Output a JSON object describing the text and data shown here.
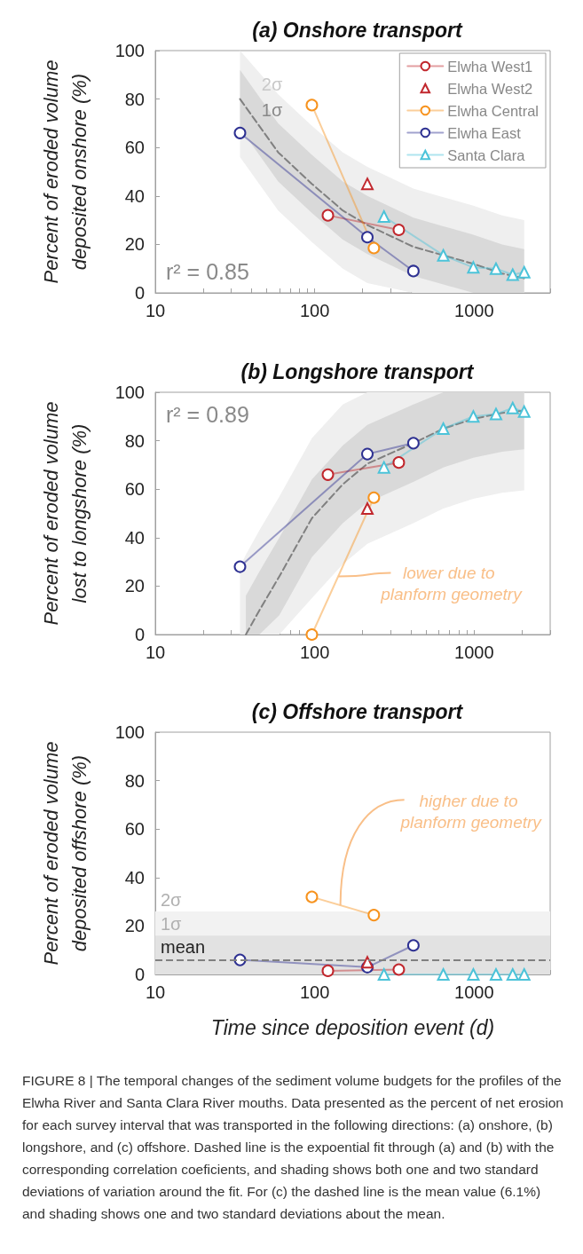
{
  "chart_data": [
    {
      "type": "line",
      "title": "(a) Onshore transport",
      "ylabel": "Percent of eroded volume deposited onshore (%)",
      "log": "x",
      "legend": "top right",
      "xlim": [
        10,
        3000
      ],
      "xticks": [
        10,
        {
          "value": 20,
          "label": null
        },
        {
          "value": 30,
          "label": null
        },
        {
          "value": 40,
          "label": null
        },
        {
          "value": 50,
          "label": null
        },
        {
          "value": 60,
          "label": null
        },
        {
          "value": 70,
          "label": null
        },
        {
          "value": 80,
          "label": null
        },
        {
          "value": 90,
          "label": null
        },
        100,
        {
          "value": 200,
          "label": null
        },
        {
          "value": 300,
          "label": null
        },
        {
          "value": 400,
          "label": null
        },
        {
          "value": 500,
          "label": null
        },
        {
          "value": 600,
          "label": null
        },
        {
          "value": 700,
          "label": null
        },
        {
          "value": 800,
          "label": null
        },
        {
          "value": 900,
          "label": null
        },
        1000,
        {
          "value": 2000,
          "label": null
        },
        {
          "value": 3000,
          "label": null
        }
      ],
      "ylim": [
        0,
        100
      ],
      "yticks": [
        0,
        20,
        40,
        60,
        80,
        100
      ],
      "series": [
        {
          "name": "Elwha West1",
          "marker": "circle",
          "color": "#c1272d",
          "x": [
            121,
            337
          ],
          "values": [
            32,
            26
          ]
        },
        {
          "name": "Elwha West2",
          "type": "scatter",
          "marker": "triangle",
          "color": "#c1272d",
          "x": [
            214
          ],
          "values": [
            45
          ]
        },
        {
          "name": "Elwha Central",
          "marker": "circle",
          "color": "#f7931e",
          "x": [
            96,
            235
          ],
          "values": [
            77.5,
            18.5
          ]
        },
        {
          "name": "Elwha East",
          "marker": "circle",
          "color": "#2e3192",
          "x": [
            34,
            214,
            416
          ],
          "values": [
            66,
            23,
            9
          ]
        },
        {
          "name": "Santa Clara",
          "marker": "triangle",
          "color": "#4cc3d9",
          "x": [
            272,
            641,
            989,
            1372,
            1746,
            2061
          ],
          "values": [
            31.5,
            15.5,
            10.5,
            10,
            7.5,
            8.5
          ]
        },
        {
          "marker": "none",
          "color": "#c8c8c8",
          "x": [
            34,
            59,
            96,
            150,
            214,
            416,
            641,
            989,
            1500,
            2061
          ],
          "values": [
            null,
            null,
            null,
            null,
            null,
            null,
            null,
            null,
            null,
            null
          ],
          "lower": [
            56,
            34,
            21,
            10,
            4,
            0,
            0,
            0,
            0,
            0
          ],
          "upper": [
            100,
            82,
            69,
            58,
            52,
            43,
            39.5,
            36,
            32,
            30
          ]
        },
        {
          "marker": "none",
          "line_style": "dashed",
          "color": "#808080",
          "x": [
            34,
            59,
            96,
            150,
            214,
            416,
            641,
            989,
            1500,
            2061
          ],
          "values": [
            80,
            58,
            45,
            34,
            28,
            19,
            15.5,
            12,
            8,
            6
          ],
          "lower": [
            68,
            46,
            33,
            22,
            16,
            7,
            3.5,
            0,
            0,
            0
          ],
          "upper": [
            92,
            70,
            57,
            46,
            40,
            31,
            27.5,
            24,
            20,
            18
          ]
        }
      ],
      "annotations": [
        {
          "text": "2σ",
          "x": 54,
          "y": 86
        },
        {
          "text": "1σ",
          "x": 54,
          "y": 75.5
        },
        "r² = 0.85"
      ]
    },
    {
      "type": "line",
      "title": "(b) Longshore transport",
      "ylabel": "Percent of eroded volume lost to longshore (%)",
      "log": "x",
      "xlim": [
        10,
        3000
      ],
      "xticks": [
        10,
        {
          "value": 20,
          "label": null
        },
        {
          "value": 30,
          "label": null
        },
        {
          "value": 40,
          "label": null
        },
        {
          "value": 50,
          "label": null
        },
        {
          "value": 60,
          "label": null
        },
        {
          "value": 70,
          "label": null
        },
        {
          "value": 80,
          "label": null
        },
        {
          "value": 90,
          "label": null
        },
        100,
        {
          "value": 200,
          "label": null
        },
        {
          "value": 300,
          "label": null
        },
        {
          "value": 400,
          "label": null
        },
        {
          "value": 500,
          "label": null
        },
        {
          "value": 600,
          "label": null
        },
        {
          "value": 700,
          "label": null
        },
        {
          "value": 800,
          "label": null
        },
        {
          "value": 900,
          "label": null
        },
        1000,
        {
          "value": 2000,
          "label": null
        },
        {
          "value": 3000,
          "label": null
        }
      ],
      "ylim": [
        0,
        100
      ],
      "yticks": [
        0,
        20,
        40,
        60,
        80,
        100
      ],
      "series": [
        {
          "marker": "circle",
          "color": "#c1272d",
          "x": [
            121,
            337
          ],
          "values": [
            66,
            71
          ]
        },
        {
          "type": "scatter",
          "marker": "triangle",
          "color": "#c1272d",
          "x": [
            214
          ],
          "values": [
            52
          ]
        },
        {
          "marker": "circle",
          "color": "#f7931e",
          "x": [
            96,
            235
          ],
          "values": [
            0,
            56.5
          ]
        },
        {
          "marker": "circle",
          "color": "#2e3192",
          "x": [
            34,
            214,
            416
          ],
          "values": [
            28,
            74.5,
            79
          ]
        },
        {
          "marker": "triangle",
          "color": "#4cc3d9",
          "x": [
            272,
            641,
            989,
            1372,
            1746,
            2061
          ],
          "values": [
            69,
            85,
            90,
            91,
            93.5,
            92
          ]
        },
        {
          "marker": "none",
          "color": "#c8c8c8",
          "x": [
            34,
            37,
            45,
            60,
            96,
            150,
            214,
            416,
            641,
            989,
            1500,
            2061
          ],
          "values": [
            null,
            null,
            null,
            null,
            null,
            null,
            null,
            null,
            null,
            null,
            null,
            null
          ],
          "lower": [
            0,
            0,
            0,
            0,
            15,
            29,
            37.5,
            46,
            52,
            56,
            58.5,
            59.5
          ],
          "upper": [
            28,
            33,
            43,
            57,
            81,
            95,
            100,
            100,
            100,
            100,
            100,
            100
          ]
        },
        {
          "marker": "none",
          "line_style": "dashed",
          "color": "#808080",
          "x": [
            37,
            45,
            60,
            96,
            150,
            214,
            416,
            641,
            989,
            1500,
            2061
          ],
          "values": [
            0,
            10,
            24,
            48,
            62,
            70.5,
            79,
            85,
            89,
            91.5,
            92.5
          ],
          "lower": [
            0,
            0,
            8,
            32,
            46,
            54.5,
            63,
            69,
            73,
            75.5,
            76.5
          ],
          "upper": [
            16,
            26,
            40,
            64,
            78,
            86.5,
            95,
            100,
            100,
            100,
            100
          ]
        }
      ],
      "annotations": [
        "r² = 0.89",
        {
          "text": "lower due to planform geometry",
          "x": 141,
          "y": 24
        }
      ]
    },
    {
      "type": "line",
      "title": "(c) Offshore transport",
      "xlabel": "Time since deposition event (d)",
      "ylabel": "Percent of eroded volume deposited offshore (%)",
      "log": "x",
      "xlim": [
        10,
        3000
      ],
      "xticks": [
        10,
        {
          "value": 20,
          "label": null
        },
        {
          "value": 30,
          "label": null
        },
        {
          "value": 40,
          "label": null
        },
        {
          "value": 50,
          "label": null
        },
        {
          "value": 60,
          "label": null
        },
        {
          "value": 70,
          "label": null
        },
        {
          "value": 80,
          "label": null
        },
        {
          "value": 90,
          "label": null
        },
        100,
        {
          "value": 200,
          "label": null
        },
        {
          "value": 300,
          "label": null
        },
        {
          "value": 400,
          "label": null
        },
        {
          "value": 500,
          "label": null
        },
        {
          "value": 600,
          "label": null
        },
        {
          "value": 700,
          "label": null
        },
        {
          "value": 800,
          "label": null
        },
        {
          "value": 900,
          "label": null
        },
        1000,
        {
          "value": 2000,
          "label": null
        },
        {
          "value": 3000,
          "label": null
        }
      ],
      "ylim": [
        0,
        100
      ],
      "yticks": [
        0,
        20,
        40,
        60,
        80,
        100
      ],
      "bands": [
        {
          "axis": "y",
          "from": 0,
          "to": 26,
          "label": "2σ",
          "color": "#f2f2f2"
        },
        {
          "axis": "y",
          "from": 0,
          "to": 16,
          "label": "1σ",
          "color": "#e2e2e2"
        }
      ],
      "ref_lines": [
        {
          "axis": "y",
          "value": 6.1,
          "label": "mean",
          "color": "#808080",
          "line_style": "dashed"
        }
      ],
      "series": [
        {
          "marker": "circle",
          "color": "#c1272d",
          "x": [
            121,
            337
          ],
          "values": [
            1.5,
            2
          ]
        },
        {
          "type": "scatter",
          "marker": "triangle",
          "color": "#c1272d",
          "x": [
            214
          ],
          "values": [
            5
          ]
        },
        {
          "marker": "circle",
          "color": "#f7931e",
          "x": [
            96,
            235
          ],
          "values": [
            32,
            24.5
          ]
        },
        {
          "marker": "circle",
          "color": "#2e3192",
          "x": [
            34,
            214,
            416
          ],
          "values": [
            6,
            3,
            12
          ]
        },
        {
          "marker": "triangle",
          "color": "#4cc3d9",
          "x": [
            272,
            641,
            989,
            1372,
            1746,
            2061
          ],
          "values": [
            0,
            0,
            0,
            0,
            0,
            0
          ]
        }
      ],
      "annotations": [
        {
          "text": "higher due to planform geometry",
          "x": 145,
          "y": 28.5
        },
        "FIGURE 8 | The temporal changes of the sediment volume budgets for the profiles of the Elwha River and Santa Clara River mouths. Data presented as the percent of net erosion for each survey interval that was transported in the following directions: (a) onshore, (b) longshore, and (c) offshore. Dashed line is the expoential fit through (a) and (b) with the corresponding correlation coeficients, and shading shows both one and two standard deviations of variation around the fit. For (c) the dashed line is the mean value (6.1%) and shading shows one and two standard deviations about the mean."
      ]
    }
  ]
}
